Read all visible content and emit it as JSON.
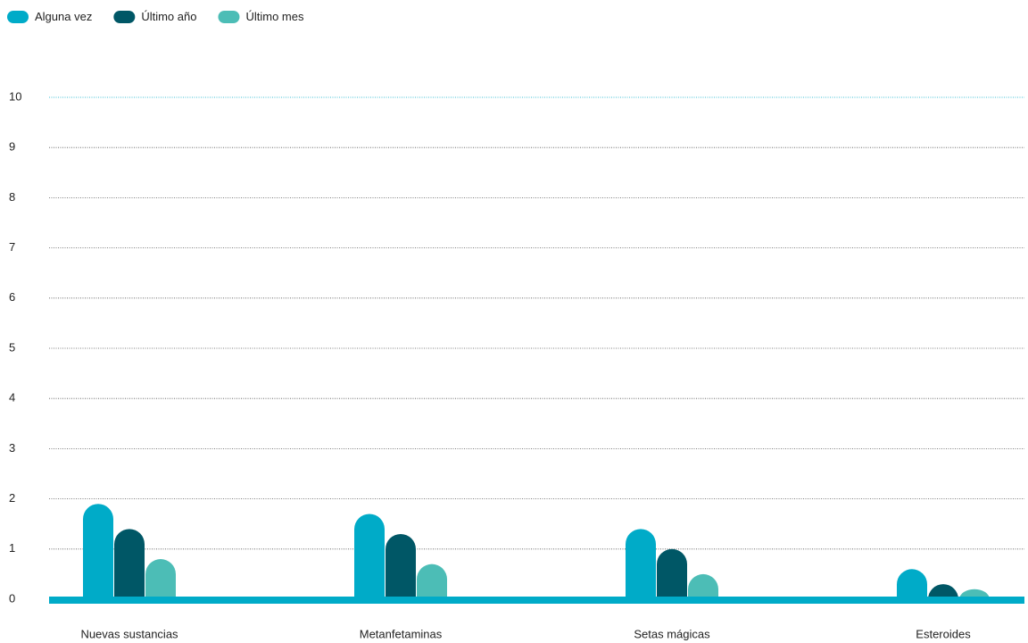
{
  "chart_data": {
    "type": "bar",
    "categories": [
      "Nuevas sustancias",
      "Metanfetaminas",
      "Setas mágicas",
      "Esteroides"
    ],
    "series": [
      {
        "name": "Alguna vez",
        "color": "#00abc8",
        "values": [
          1.9,
          1.7,
          1.4,
          0.6
        ]
      },
      {
        "name": "Último año",
        "color": "#005766",
        "values": [
          1.4,
          1.3,
          1.0,
          0.3
        ]
      },
      {
        "name": "Último mes",
        "color": "#4cbdb6",
        "values": [
          0.8,
          0.7,
          0.5,
          0.2
        ]
      }
    ],
    "ylim": [
      0,
      10
    ],
    "yticks": [
      0,
      1,
      2,
      3,
      4,
      5,
      6,
      7,
      8,
      9,
      10
    ],
    "grid": true,
    "legend": "top-left"
  }
}
